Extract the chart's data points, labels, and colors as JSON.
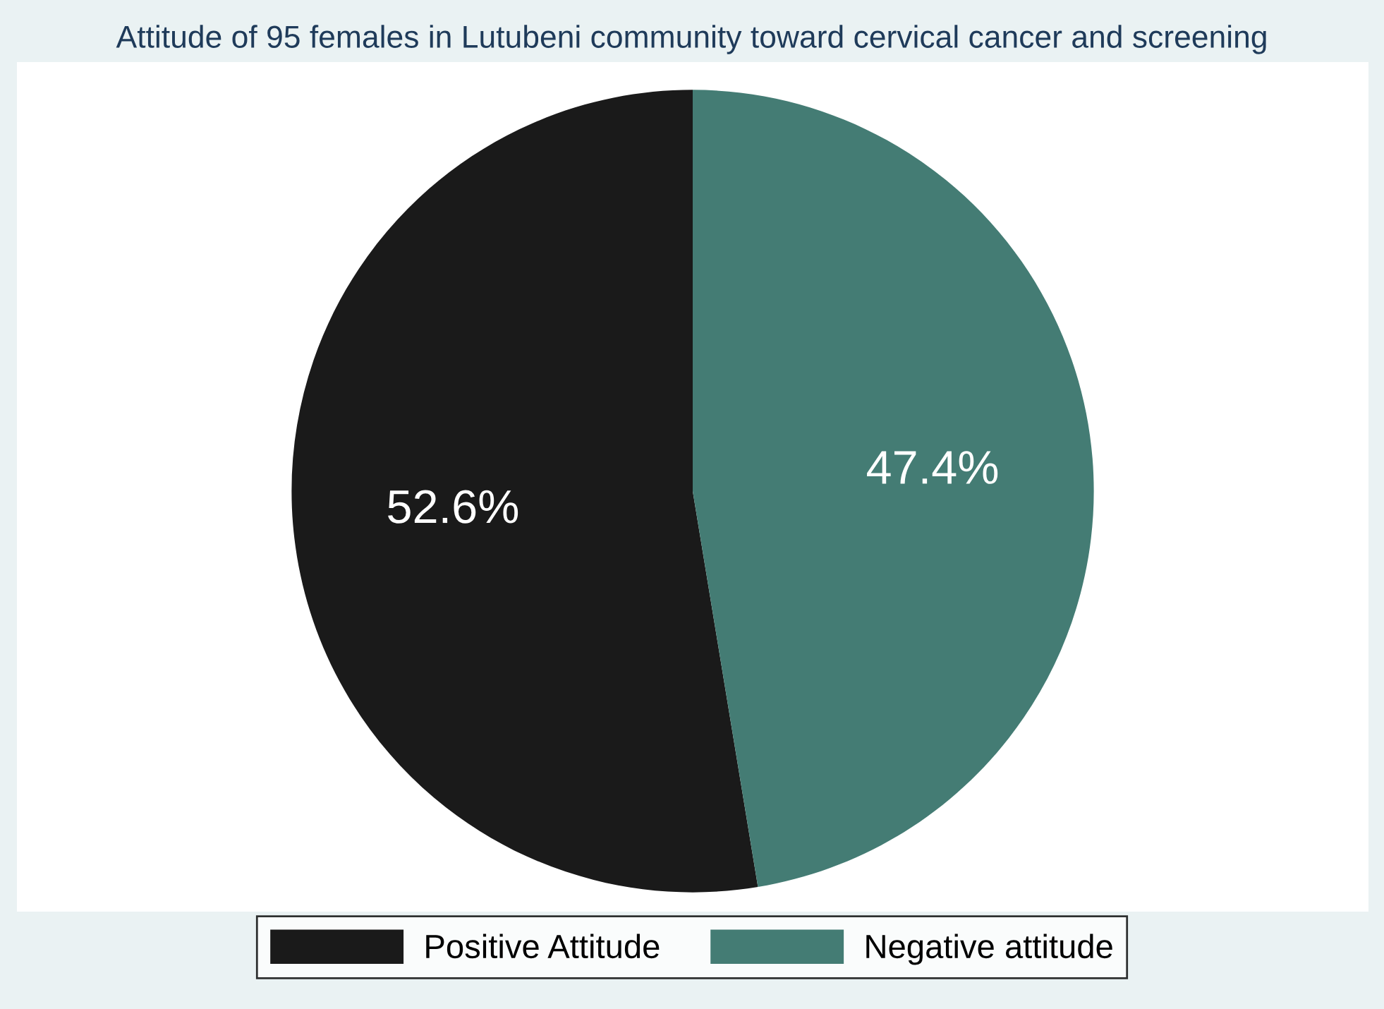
{
  "chart_data": {
    "type": "pie",
    "title": "Attitude of 95 females in Lutubeni community toward cervical cancer and screening",
    "categories": [
      "Positive Attitude",
      "Negative attitude"
    ],
    "values": [
      52.6,
      47.4
    ],
    "colors": [
      "#1a1a1a",
      "#447c74"
    ],
    "value_labels": [
      "52.6%",
      "47.4%"
    ],
    "legend": "bottom"
  }
}
